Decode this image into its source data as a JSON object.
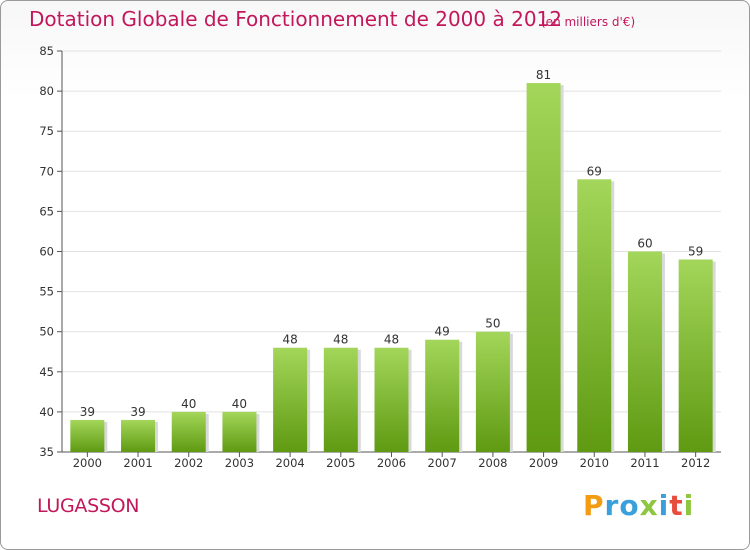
{
  "header": {
    "title": "Dotation Globale de Fonctionnement de 2000 à 2012",
    "unit_note": "(en milliers d'€)"
  },
  "footer": {
    "commune": "LUGASSON",
    "logo_text": "Proxiti"
  },
  "colors": {
    "title": "#c2185b",
    "bar_top": "#a3d65a",
    "bar_bottom": "#5f9a12",
    "grid": "#e2e2e2"
  },
  "chart_data": {
    "type": "bar",
    "title": "Dotation Globale de Fonctionnement de 2000 à 2012",
    "subtitle": "(en milliers d'€)",
    "xlabel": "",
    "ylabel": "",
    "categories": [
      "2000",
      "2001",
      "2002",
      "2003",
      "2004",
      "2005",
      "2006",
      "2007",
      "2008",
      "2009",
      "2010",
      "2011",
      "2012"
    ],
    "values": [
      39,
      39,
      40,
      40,
      48,
      48,
      48,
      49,
      50,
      81,
      69,
      60,
      59
    ],
    "ylim": [
      35,
      85
    ],
    "yticks": [
      35,
      40,
      45,
      50,
      55,
      60,
      65,
      70,
      75,
      80,
      85
    ],
    "grid": true,
    "legend": "none",
    "data_labels": true
  }
}
